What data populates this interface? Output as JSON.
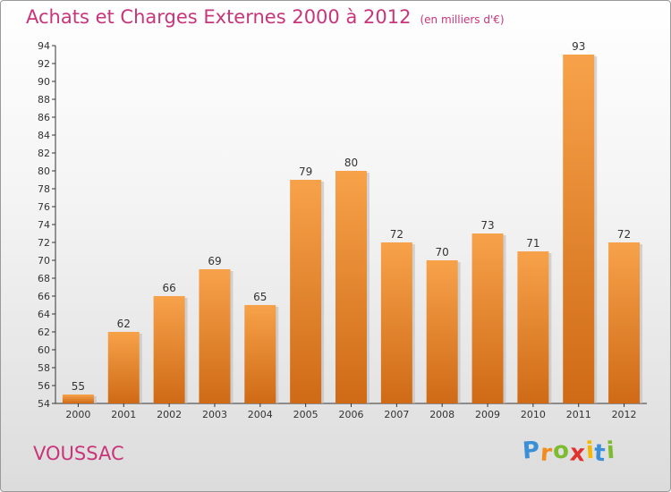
{
  "chart_data": {
    "type": "bar",
    "title": "Achats et Charges Externes 2000 à 2012",
    "unit_note": "(en milliers d'€)",
    "categories": [
      "2000",
      "2001",
      "2002",
      "2003",
      "2004",
      "2005",
      "2006",
      "2007",
      "2008",
      "2009",
      "2010",
      "2011",
      "2012"
    ],
    "values": [
      55,
      62,
      66,
      69,
      65,
      79,
      80,
      72,
      70,
      73,
      71,
      93,
      72
    ],
    "ylim": [
      54,
      94
    ],
    "yticks": [
      54,
      56,
      58,
      60,
      62,
      64,
      66,
      68,
      70,
      72,
      74,
      76,
      78,
      80,
      82,
      84,
      86,
      88,
      90,
      92,
      94
    ],
    "grid": false,
    "bar_color": "#f08a2c",
    "title_color": "#c8357a"
  },
  "place_name": "VOUSSAC",
  "logo": {
    "text": "Proxiti",
    "letters": [
      "P",
      "r",
      "o",
      "x",
      "i",
      "t",
      "i"
    ],
    "colors": [
      "#3a8fd6",
      "#f28c1e",
      "#7dbb2f",
      "#e2322d",
      "#f5b800",
      "#3a8fd6",
      "#7dbb2f"
    ]
  }
}
